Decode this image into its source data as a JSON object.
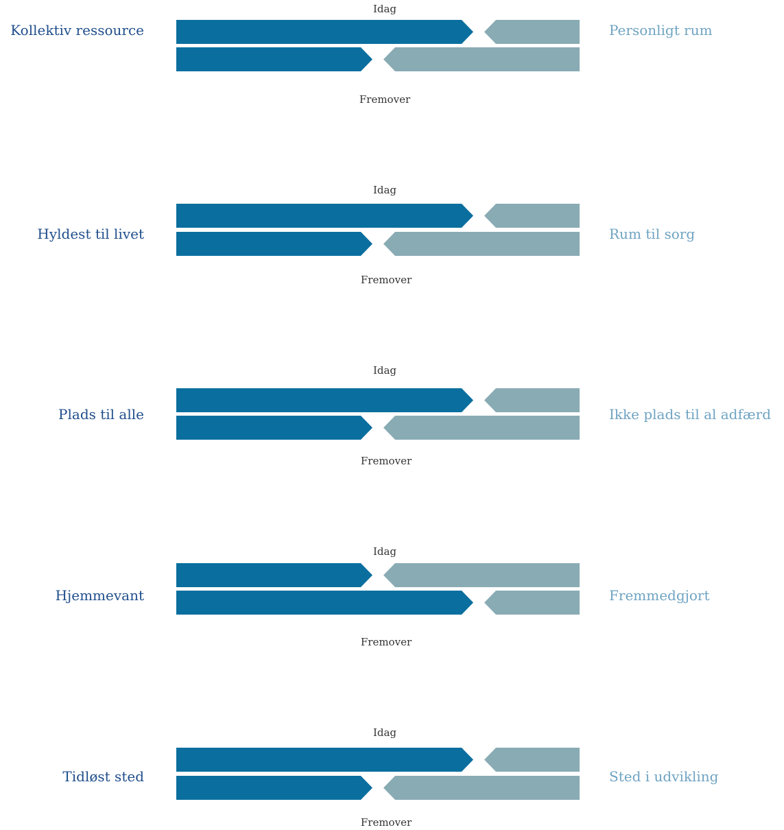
{
  "colors": {
    "left": "#0a6f9f",
    "right": "#89abb4",
    "label_left": "#1f4e8c",
    "label_right": "#6fa3c2"
  },
  "top_caption": "Idag",
  "bottom_caption": "Fremover",
  "rows": [
    {
      "left_label": "Kollektiv ressource",
      "right_label": "Personligt rum",
      "idag": 0.75,
      "fremover": 0.5
    },
    {
      "left_label": "Hyldest til livet",
      "right_label": "Rum til sorg",
      "idag": 0.75,
      "fremover": 0.5
    },
    {
      "left_label": "Plads til alle",
      "right_label": "Ikke plads til al adfærd",
      "idag": 0.75,
      "fremover": 0.5
    },
    {
      "left_label": "Hjemmevant",
      "right_label": "Fremmedgjort",
      "idag": 0.5,
      "fremover": 0.75
    },
    {
      "left_label": "Tidløst sted",
      "right_label": "Sted i udvikling",
      "idag": 0.75,
      "fremover": 0.5
    }
  ]
}
